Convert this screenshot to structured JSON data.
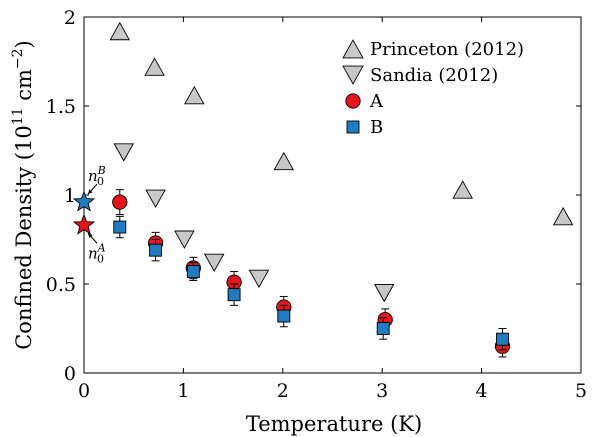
{
  "chart_data": {
    "type": "scatter",
    "xlabel": "Temperature (K)",
    "ylabel_main": "Confined Density (10",
    "ylabel_exp": "11",
    "ylabel_unit": " cm",
    "ylabel_unit_exp": "−2",
    "ylabel_close": ")",
    "xlim": [
      0,
      5
    ],
    "ylim": [
      0,
      2
    ],
    "x_ticks": [
      {
        "value": 0,
        "label": "0"
      },
      {
        "value": 1,
        "label": "1"
      },
      {
        "value": 2,
        "label": "2"
      },
      {
        "value": 3,
        "label": "3"
      },
      {
        "value": 4,
        "label": "4"
      },
      {
        "value": 5,
        "label": "5"
      }
    ],
    "y_ticks": [
      {
        "value": 0,
        "label": "0"
      },
      {
        "value": 0.5,
        "label": "0.5"
      },
      {
        "value": 1,
        "label": "1"
      },
      {
        "value": 1.5,
        "label": "1.5"
      },
      {
        "value": 2,
        "label": "2"
      }
    ],
    "grid": false,
    "legend_position": "top-right",
    "series": [
      {
        "name": "Princeton (2012)",
        "marker": "triangle-up",
        "color": "#c8c8c8",
        "points": [
          {
            "x": 0.36,
            "y": 1.92
          },
          {
            "x": 0.71,
            "y": 1.72
          },
          {
            "x": 1.11,
            "y": 1.56
          },
          {
            "x": 2.01,
            "y": 1.19
          },
          {
            "x": 3.81,
            "y": 1.03
          },
          {
            "x": 4.82,
            "y": 0.88
          }
        ]
      },
      {
        "name": "Sandia (2012)",
        "marker": "triangle-down",
        "color": "#c8c8c8",
        "points": [
          {
            "x": 0.4,
            "y": 1.24
          },
          {
            "x": 0.72,
            "y": 0.98
          },
          {
            "x": 1.01,
            "y": 0.75
          },
          {
            "x": 1.31,
            "y": 0.62
          },
          {
            "x": 1.76,
            "y": 0.53
          },
          {
            "x": 3.02,
            "y": 0.45
          }
        ]
      },
      {
        "name": "A",
        "marker": "circle",
        "color": "#e8141c",
        "points": [
          {
            "x": 0.36,
            "y": 0.96,
            "err": 0.07
          },
          {
            "x": 0.72,
            "y": 0.73,
            "err": 0.06
          },
          {
            "x": 1.1,
            "y": 0.59,
            "err": 0.06
          },
          {
            "x": 1.51,
            "y": 0.51,
            "err": 0.06
          },
          {
            "x": 2.01,
            "y": 0.37,
            "err": 0.06
          },
          {
            "x": 3.03,
            "y": 0.3,
            "err": 0.06
          },
          {
            "x": 4.21,
            "y": 0.15,
            "err": 0.06
          }
        ]
      },
      {
        "name": "B",
        "marker": "square",
        "color": "#1f7bc2",
        "points": [
          {
            "x": 0.36,
            "y": 0.82,
            "err": 0.06
          },
          {
            "x": 0.72,
            "y": 0.69,
            "err": 0.06
          },
          {
            "x": 1.1,
            "y": 0.57,
            "err": 0.05
          },
          {
            "x": 1.51,
            "y": 0.44,
            "err": 0.06
          },
          {
            "x": 2.01,
            "y": 0.32,
            "err": 0.06
          },
          {
            "x": 3.01,
            "y": 0.25,
            "err": 0.06
          },
          {
            "x": 4.21,
            "y": 0.19,
            "err": 0.06
          }
        ]
      }
    ],
    "stars": [
      {
        "name": "n0B",
        "x": 0,
        "y": 0.96,
        "color": "#1f7bc2",
        "label_base": "n",
        "label_sub": "0",
        "label_sup": "B"
      },
      {
        "name": "n0A",
        "x": 0,
        "y": 0.83,
        "color": "#e8141c",
        "label_base": "n",
        "label_sub": "0",
        "label_sup": "A"
      }
    ]
  }
}
